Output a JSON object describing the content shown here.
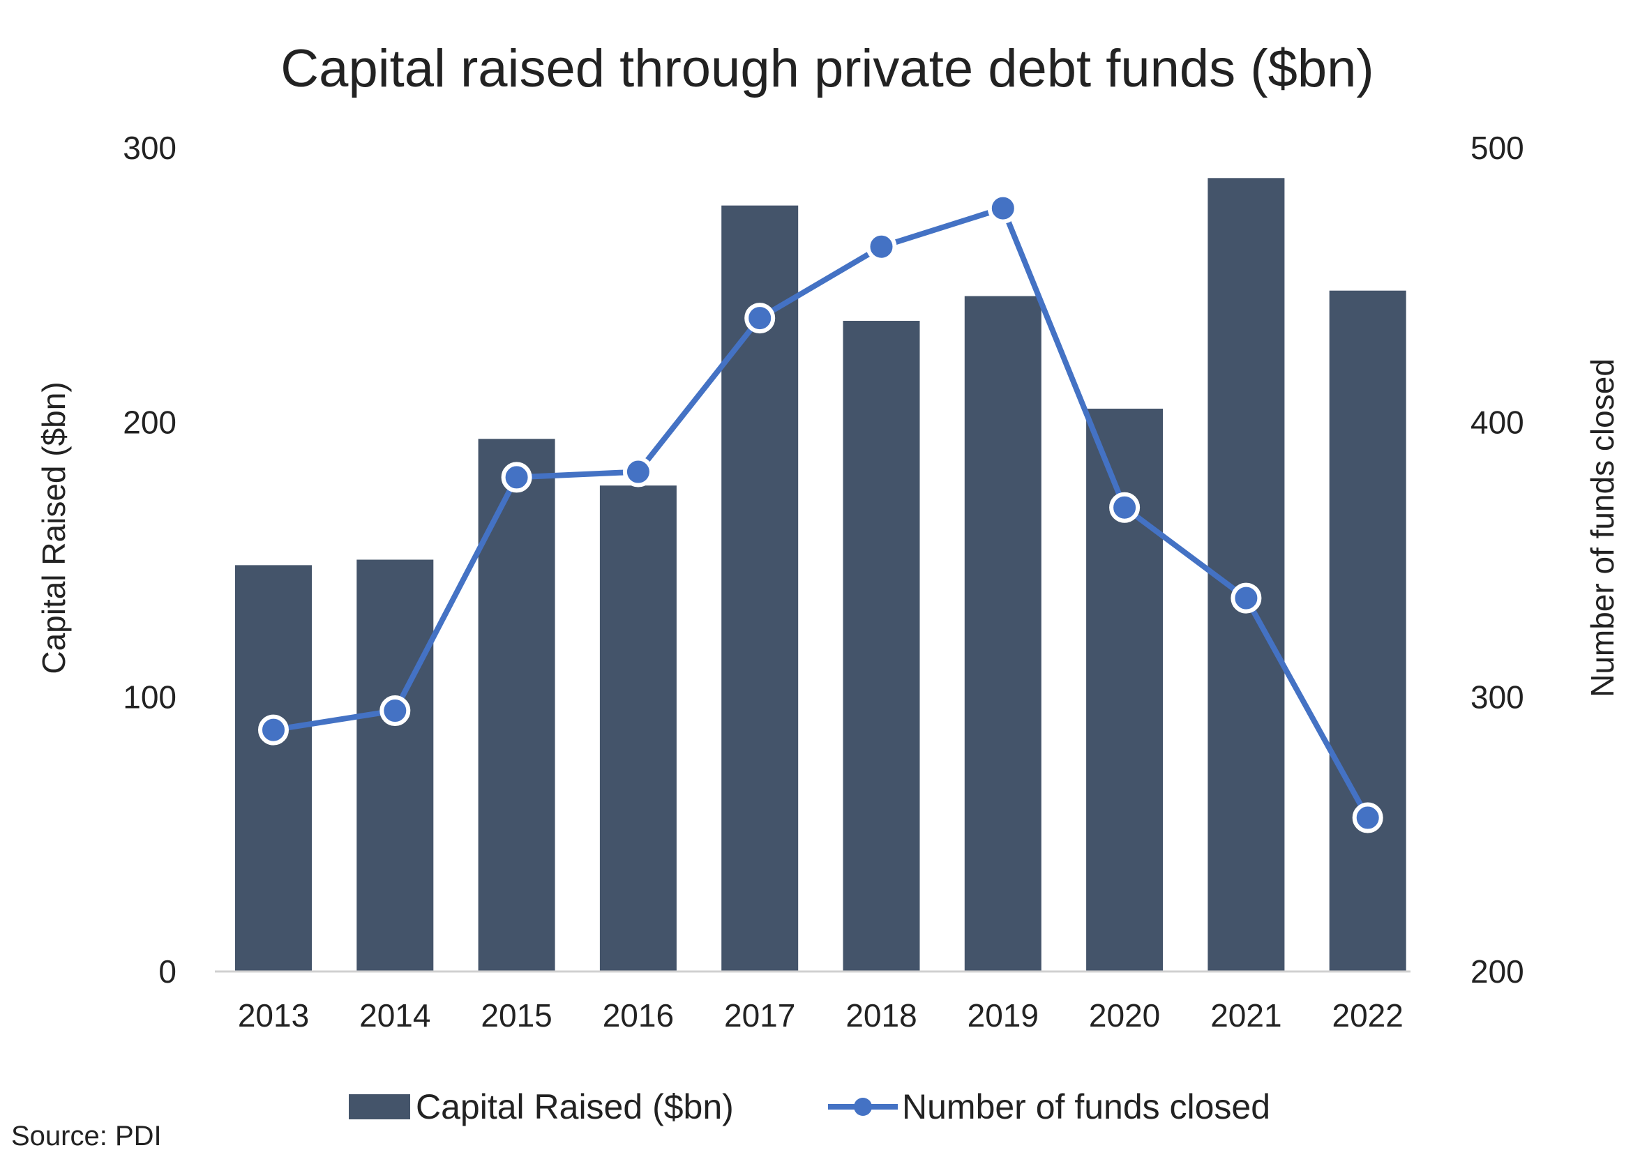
{
  "chart_data": {
    "type": "bar",
    "title": "Capital raised through private debt funds ($bn)",
    "categories": [
      "2013",
      "2014",
      "2015",
      "2016",
      "2017",
      "2018",
      "2019",
      "2020",
      "2021",
      "2022"
    ],
    "series": [
      {
        "name": "Capital Raised ($bn)",
        "type": "bar",
        "axis": "left",
        "values": [
          148,
          150,
          194,
          177,
          279,
          237,
          246,
          205,
          289,
          248
        ],
        "color": "#44546A"
      },
      {
        "name": "Number of funds closed",
        "type": "line",
        "axis": "right",
        "values": [
          288,
          295,
          380,
          382,
          438,
          464,
          478,
          369,
          336,
          256
        ],
        "color": "#4472C4"
      }
    ],
    "ylabel": "Capital Raised ($bn)",
    "y2label": "Number of funds closed",
    "ylim": [
      0,
      300
    ],
    "y2lim": [
      200,
      500
    ],
    "yticks": [
      "0",
      "100",
      "200",
      "300"
    ],
    "y2ticks": [
      "200",
      "300",
      "400",
      "500"
    ],
    "grid": false,
    "legend_position": "bottom"
  },
  "source": "Source: PDI"
}
